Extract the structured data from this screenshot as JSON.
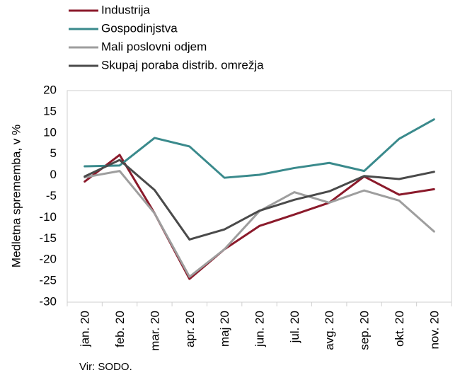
{
  "chart_data": {
    "type": "line",
    "title": "",
    "xlabel": "",
    "ylabel": "Medletna sprememba, v %",
    "ylim": [
      -30,
      20
    ],
    "yticks": [
      20,
      15,
      10,
      5,
      0,
      -5,
      -10,
      -15,
      -20,
      -25,
      -30
    ],
    "grid": false,
    "legend_position": "top-left",
    "categories": [
      "jan. 20",
      "feb. 20",
      "mar. 20",
      "apr. 20",
      "maj 20",
      "jun. 20",
      "jul. 20",
      "avg. 20",
      "sep. 20",
      "okt. 20",
      "nov. 20"
    ],
    "series": [
      {
        "name": "Industrija",
        "color": "#8B1A2B",
        "values": [
          -1.5,
          4.8,
          -9.0,
          -24.5,
          -17.5,
          -12.0,
          -9.3,
          -6.5,
          -0.3,
          -4.6,
          -3.3
        ]
      },
      {
        "name": "Gospodinjstva",
        "color": "#3A8A8C",
        "values": [
          2.1,
          2.3,
          8.8,
          6.8,
          -0.6,
          0.1,
          1.7,
          2.9,
          1.0,
          8.6,
          13.2
        ]
      },
      {
        "name": "Mali poslovni odjem",
        "color": "#9E9E9E",
        "values": [
          -0.5,
          1.0,
          -9.0,
          -24.0,
          -17.5,
          -8.5,
          -4.0,
          -6.5,
          -3.6,
          -6.0,
          -13.3
        ]
      },
      {
        "name": "Skupaj poraba distrib. omrežja",
        "color": "#4A4A4A",
        "values": [
          -0.3,
          3.6,
          -3.5,
          -15.2,
          -12.8,
          -8.4,
          -5.8,
          -3.8,
          -0.2,
          -0.9,
          0.8
        ]
      }
    ],
    "source": "Vir: SODO."
  }
}
